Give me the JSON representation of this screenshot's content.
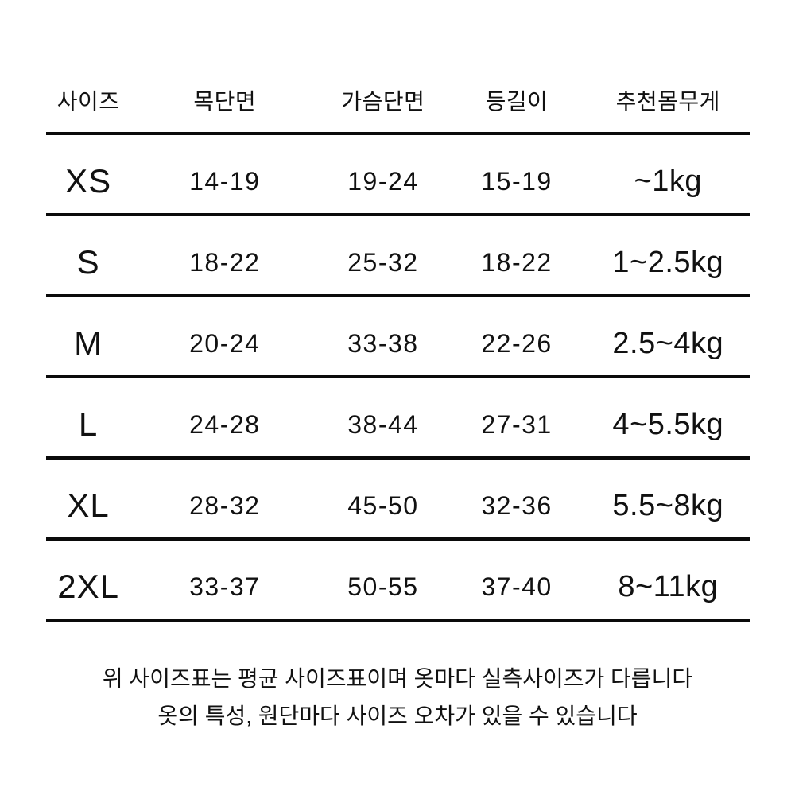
{
  "table": {
    "columns": [
      "사이즈",
      "목단면",
      "가슴단면",
      "등길이",
      "추천몸무게"
    ],
    "rows": [
      {
        "size": "XS",
        "neck": "14-19",
        "chest": "19-24",
        "back": "15-19",
        "weight": "~1kg"
      },
      {
        "size": "S",
        "neck": "18-22",
        "chest": "25-32",
        "back": "18-22",
        "weight": "1~2.5kg"
      },
      {
        "size": "M",
        "neck": "20-24",
        "chest": "33-38",
        "back": "22-26",
        "weight": "2.5~4kg"
      },
      {
        "size": "L",
        "neck": "24-28",
        "chest": "38-44",
        "back": "27-31",
        "weight": "4~5.5kg"
      },
      {
        "size": "XL",
        "neck": "28-32",
        "chest": "45-50",
        "back": "32-36",
        "weight": "5.5~8kg"
      },
      {
        "size": "2XL",
        "neck": "33-37",
        "chest": "50-55",
        "back": "37-40",
        "weight": "8~11kg"
      }
    ]
  },
  "footnote": {
    "line1": "위 사이즈표는 평균 사이즈표이며 옷마다 실측사이즈가 다릅니다",
    "line2": "옷의 특성, 원단마다 사이즈 오차가 있을 수 있습니다"
  },
  "colors": {
    "background": "#ffffff",
    "text": "#111111",
    "rule": "#0a0a0a"
  }
}
